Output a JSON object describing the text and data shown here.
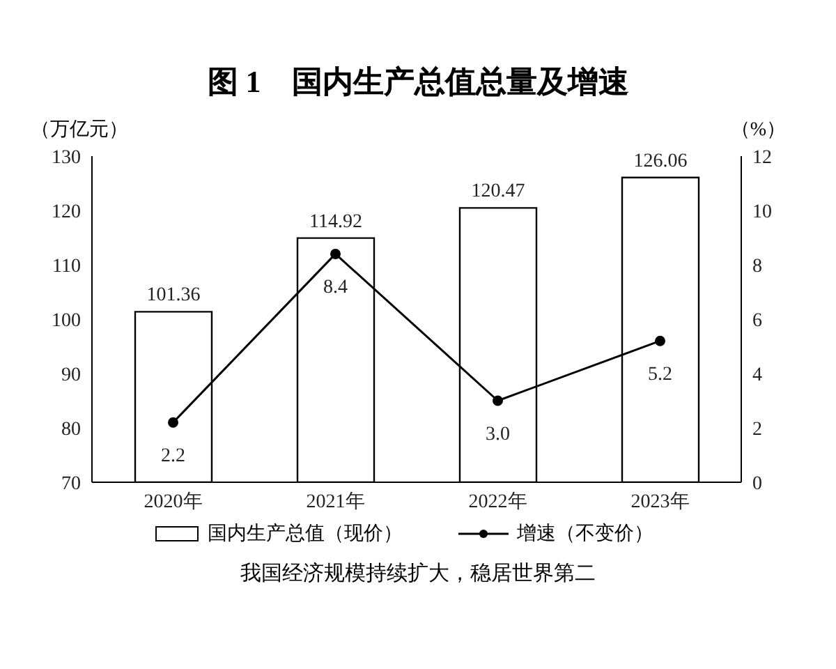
{
  "chart_data": {
    "type": "bar",
    "title": "图 1　国内生产总值总量及增速",
    "ylabel": "（万亿元）",
    "y2label": "（%）",
    "categories": [
      "2020年",
      "2021年",
      "2022年",
      "2023年"
    ],
    "series": [
      {
        "name": "国内生产总值（现价）",
        "color": "#ffffff",
        "values": [
          101.36,
          114.92,
          120.47,
          126.06
        ],
        "value_labels": [
          "101.36",
          "114.92",
          "120.47",
          "126.06"
        ]
      },
      {
        "name": "增速（不变价）",
        "type": "line",
        "axis": "y2",
        "color": "#000000",
        "marker": "circle",
        "values": [
          2.2,
          8.4,
          3.0,
          5.2
        ],
        "value_labels": [
          "2.2",
          "8.4",
          "3.0",
          "5.2"
        ]
      }
    ],
    "ylim": [
      70,
      130
    ],
    "yticks": [
      70,
      80,
      90,
      100,
      110,
      120,
      130
    ],
    "y2lim": [
      0,
      12
    ],
    "y2ticks": [
      0,
      2,
      4,
      6,
      8,
      10,
      12
    ],
    "grid": false,
    "legend": "bottom",
    "annotations": [
      "我国经济规模持续扩大，稳居世界第二"
    ]
  }
}
